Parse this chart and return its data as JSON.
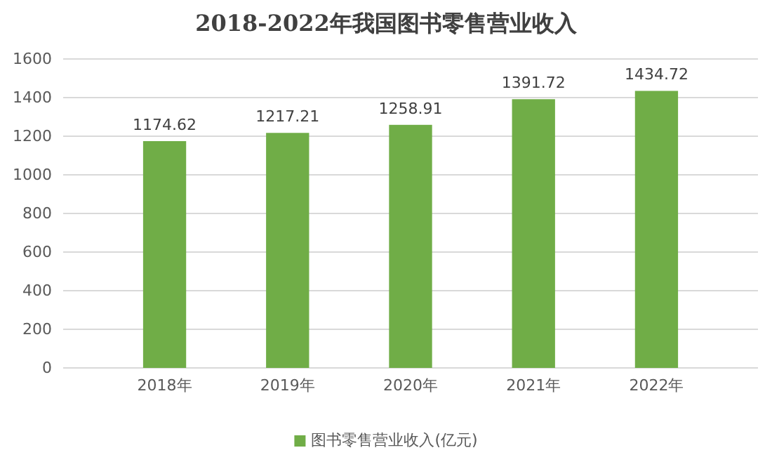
{
  "chart_data": {
    "type": "bar",
    "title": "2018-2022年我国图书零售营业收入",
    "categories": [
      "2018年",
      "2019年",
      "2020年",
      "2021年",
      "2022年"
    ],
    "series": [
      {
        "name": "图书零售营业收入(亿元)",
        "color": "#70ad47",
        "values": [
          1174.62,
          1217.21,
          1258.91,
          1391.72,
          1434.72
        ]
      }
    ],
    "ylim": [
      0,
      1600
    ],
    "yticks": [
      0,
      200,
      400,
      600,
      800,
      1000,
      1200,
      1400,
      1600
    ],
    "grid": "y",
    "legend": "bottom",
    "data_labels": true
  }
}
